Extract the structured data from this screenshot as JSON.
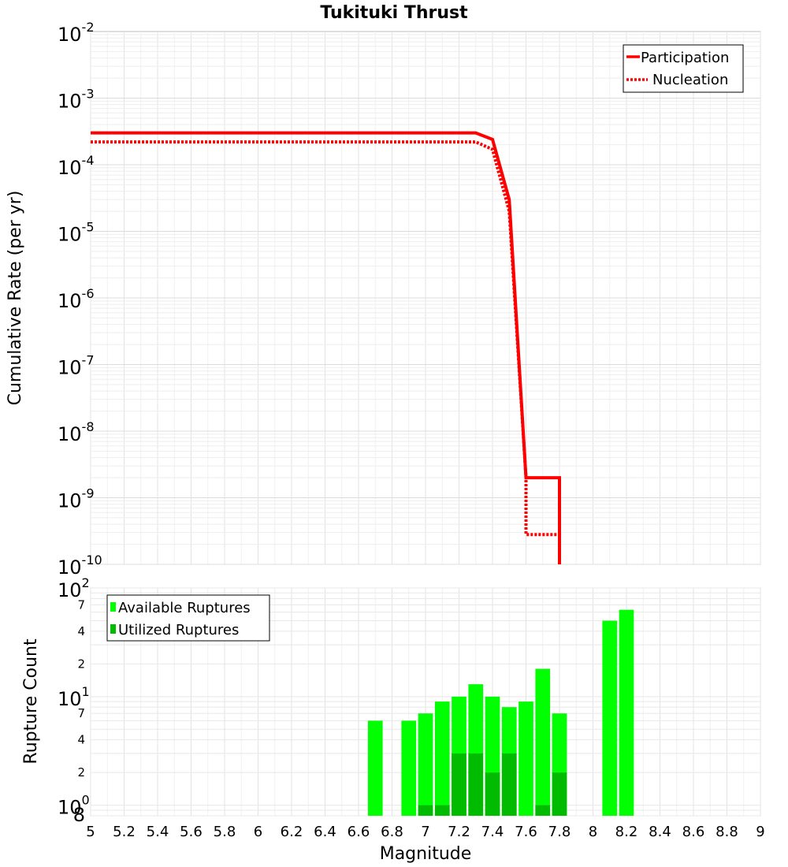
{
  "chart_data": [
    {
      "type": "line",
      "title": "Tukituki Thrust",
      "ylabel": "Cumulative Rate (per yr)",
      "xlim": [
        5,
        9
      ],
      "ylim": [
        1e-10,
        0.01
      ],
      "yscale": "log",
      "grid": true,
      "legend_position": "top-right",
      "y_tick_labels": [
        {
          "base": "10",
          "exp": "-2"
        },
        {
          "base": "10",
          "exp": "-3"
        },
        {
          "base": "10",
          "exp": "-4"
        },
        {
          "base": "10",
          "exp": "-5"
        },
        {
          "base": "10",
          "exp": "-6"
        },
        {
          "base": "10",
          "exp": "-7"
        },
        {
          "base": "10",
          "exp": "-8"
        },
        {
          "base": "10",
          "exp": "-9"
        },
        {
          "base": "10",
          "exp": "-10"
        }
      ],
      "series": [
        {
          "name": "Participation",
          "color": "#ff0000",
          "style": "solid",
          "x": [
            5.0,
            7.3,
            7.4,
            7.5,
            7.6,
            7.8,
            7.8
          ],
          "y": [
            0.0003,
            0.0003,
            0.00024,
            3e-05,
            2e-09,
            2e-09,
            1e-10
          ]
        },
        {
          "name": "Nucleation",
          "color": "#ff0000",
          "style": "dotted",
          "x": [
            5.0,
            7.3,
            7.4,
            7.5,
            7.6,
            7.6,
            7.8,
            7.8
          ],
          "y": [
            0.00022,
            0.00022,
            0.00017,
            2e-05,
            2e-09,
            2.8e-10,
            2.8e-10,
            1e-10
          ]
        }
      ]
    },
    {
      "type": "bar",
      "xlabel": "Magnitude",
      "ylabel": "Rupture Count",
      "xlim": [
        5,
        9
      ],
      "ylim": [
        0.8,
        100
      ],
      "yscale": "log",
      "grid": true,
      "legend_position": "top-left",
      "x_tick_labels": [
        "5",
        "5.2",
        "5.4",
        "5.6",
        "5.8",
        "6",
        "6.2",
        "6.4",
        "6.6",
        "6.8",
        "7",
        "7.2",
        "7.4",
        "7.6",
        "7.8",
        "8",
        "8.2",
        "8.4",
        "8.6",
        "8.8",
        "9"
      ],
      "y_major_labels": [
        {
          "base": "10",
          "exp": "2"
        },
        {
          "base": "10",
          "exp": "1"
        },
        {
          "base": "10",
          "exp": "0"
        }
      ],
      "y_minor_labels": [
        "7",
        "4",
        "2",
        "7",
        "4",
        "2",
        "8"
      ],
      "series": [
        {
          "name": "Available Ruptures",
          "color": "#00ff00",
          "x": [
            6.7,
            6.9,
            7.0,
            7.1,
            7.2,
            7.3,
            7.4,
            7.5,
            7.6,
            7.7,
            7.8,
            8.1,
            8.2
          ],
          "values": [
            6,
            6,
            7,
            9,
            10,
            13,
            10,
            8,
            9,
            18,
            7,
            50,
            63
          ]
        },
        {
          "name": "Utilized Ruptures",
          "color": "#00bb00",
          "x": [
            7.0,
            7.1,
            7.2,
            7.3,
            7.4,
            7.5,
            7.7,
            7.8
          ],
          "values": [
            1,
            1,
            3,
            3,
            2,
            3,
            1,
            2
          ]
        }
      ]
    }
  ]
}
